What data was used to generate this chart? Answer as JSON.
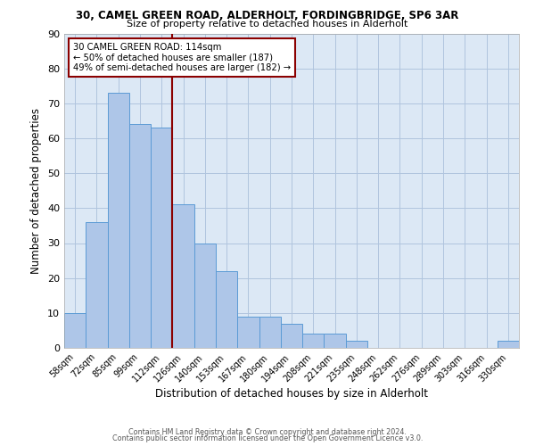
{
  "title": "30, CAMEL GREEN ROAD, ALDERHOLT, FORDINGBRIDGE, SP6 3AR",
  "subtitle": "Size of property relative to detached houses in Alderholt",
  "xlabel": "Distribution of detached houses by size in Alderholt",
  "ylabel": "Number of detached properties",
  "bar_labels": [
    "58sqm",
    "72sqm",
    "85sqm",
    "99sqm",
    "112sqm",
    "126sqm",
    "140sqm",
    "153sqm",
    "167sqm",
    "180sqm",
    "194sqm",
    "208sqm",
    "221sqm",
    "235sqm",
    "248sqm",
    "262sqm",
    "276sqm",
    "289sqm",
    "303sqm",
    "316sqm",
    "330sqm"
  ],
  "bar_values": [
    10,
    36,
    73,
    64,
    63,
    41,
    30,
    22,
    9,
    9,
    7,
    4,
    4,
    2,
    0,
    0,
    0,
    0,
    0,
    0,
    2
  ],
  "bar_color": "#aec6e8",
  "bar_edge_color": "#5b9bd5",
  "ylim": [
    0,
    90
  ],
  "yticks": [
    0,
    10,
    20,
    30,
    40,
    50,
    60,
    70,
    80,
    90
  ],
  "vline_x": 4.5,
  "vline_color": "#8b0000",
  "annotation_title": "30 CAMEL GREEN ROAD: 114sqm",
  "annotation_line1": "← 50% of detached houses are smaller (187)",
  "annotation_line2": "49% of semi-detached houses are larger (182) →",
  "annotation_box_edge": "#8b0000",
  "footer1": "Contains HM Land Registry data © Crown copyright and database right 2024.",
  "footer2": "Contains public sector information licensed under the Open Government Licence v3.0.",
  "background_color": "#ffffff",
  "axes_background": "#dce8f5",
  "grid_color": "#b0c4de"
}
